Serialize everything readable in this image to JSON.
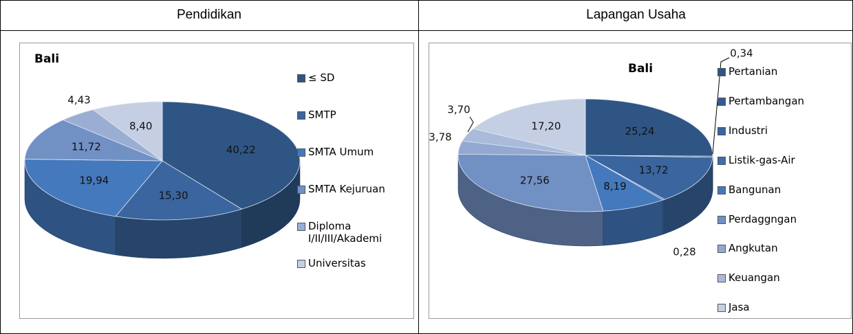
{
  "table": {
    "headers": [
      "Pendidikan",
      "Lapangan Usaha"
    ]
  },
  "chart_data": [
    {
      "type": "pie",
      "title": "Bali",
      "categories": [
        "≤ SD",
        "SMTP",
        "SMTA Umum",
        "SMTA Kejuruan",
        "Diploma I/II/III/Akademi",
        "Universitas"
      ],
      "values": [
        40.22,
        15.3,
        19.94,
        11.72,
        4.43,
        8.4
      ],
      "value_labels": [
        "40,22",
        "15,30",
        "19,94",
        "11,72",
        "4,43",
        "8,40"
      ],
      "colors": [
        "#2f5585",
        "#3a659e",
        "#4479bd",
        "#7190c4",
        "#9aaed4",
        "#c5cfe4"
      ],
      "legend": "right"
    },
    {
      "type": "pie",
      "title": "Bali",
      "categories": [
        "Pertanian",
        "Pertambangan",
        "Industri",
        "Listik-gas-Air",
        "Bangunan",
        "Perdaggngan",
        "Angkutan",
        "Keuangan",
        "Jasa"
      ],
      "values": [
        25.24,
        0.34,
        13.72,
        0.28,
        8.19,
        27.56,
        3.78,
        3.7,
        17.2
      ],
      "value_labels": [
        "25,24",
        "0,34",
        "13,72",
        "0,28",
        "8,19",
        "27,56",
        "3,78",
        "3,70",
        "17,20"
      ],
      "colors": [
        "#2f5585",
        "#335b91",
        "#3a659e",
        "#3e6eab",
        "#4479bd",
        "#7190c4",
        "#93a9d1",
        "#a9badb",
        "#c5cfe4"
      ],
      "legend": "right"
    }
  ]
}
